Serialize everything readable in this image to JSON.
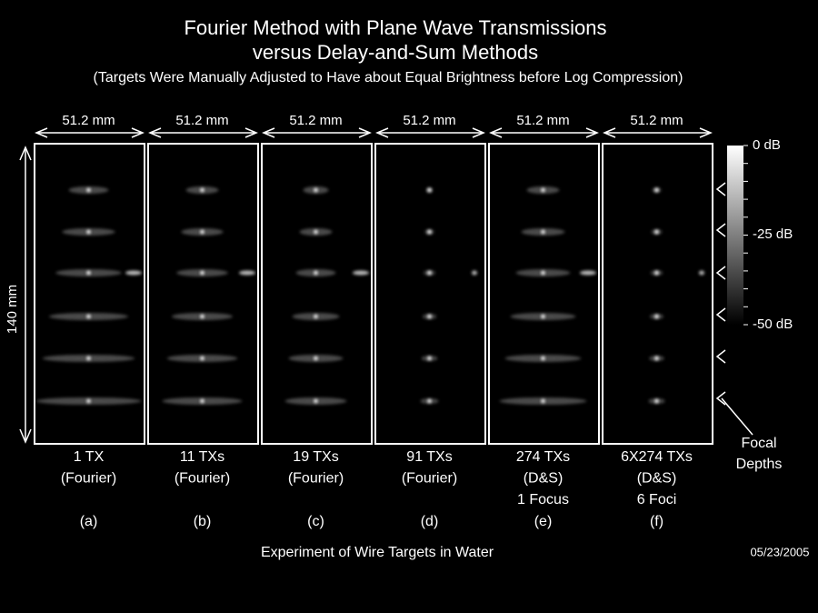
{
  "header": {
    "title_lines": [
      "Fourier Method with Plane Wave Transmissions",
      "versus Delay-and-Sum Methods"
    ],
    "subtitle": "(Targets Were Manually Adjusted to Have about Equal Brightness before Log Compression)"
  },
  "panel_width_label": "51.2 mm",
  "depth_label": "140 mm",
  "panels": [
    {
      "lines": [
        "1 TX",
        "(Fourier)"
      ],
      "letter": "(a)"
    },
    {
      "lines": [
        "11 TXs",
        "(Fourier)"
      ],
      "letter": "(b)"
    },
    {
      "lines": [
        "19 TXs",
        "(Fourier)"
      ],
      "letter": "(c)"
    },
    {
      "lines": [
        "91 TXs",
        "(Fourier)"
      ],
      "letter": "(d)"
    },
    {
      "lines": [
        "274 TXs",
        "(D&S)",
        "1 Focus"
      ],
      "letter": "(e)"
    },
    {
      "lines": [
        "6X274 TXs",
        "(D&S)",
        "6 Foci"
      ],
      "letter": "(f)"
    }
  ],
  "colorbar": {
    "labels": [
      "0 dB",
      "-25 dB",
      "-50 dB"
    ]
  },
  "focal_label_lines": [
    "Focal",
    "Depths"
  ],
  "footer": {
    "caption": "Experiment of Wire Targets in Water",
    "date": "05/23/2005"
  }
}
